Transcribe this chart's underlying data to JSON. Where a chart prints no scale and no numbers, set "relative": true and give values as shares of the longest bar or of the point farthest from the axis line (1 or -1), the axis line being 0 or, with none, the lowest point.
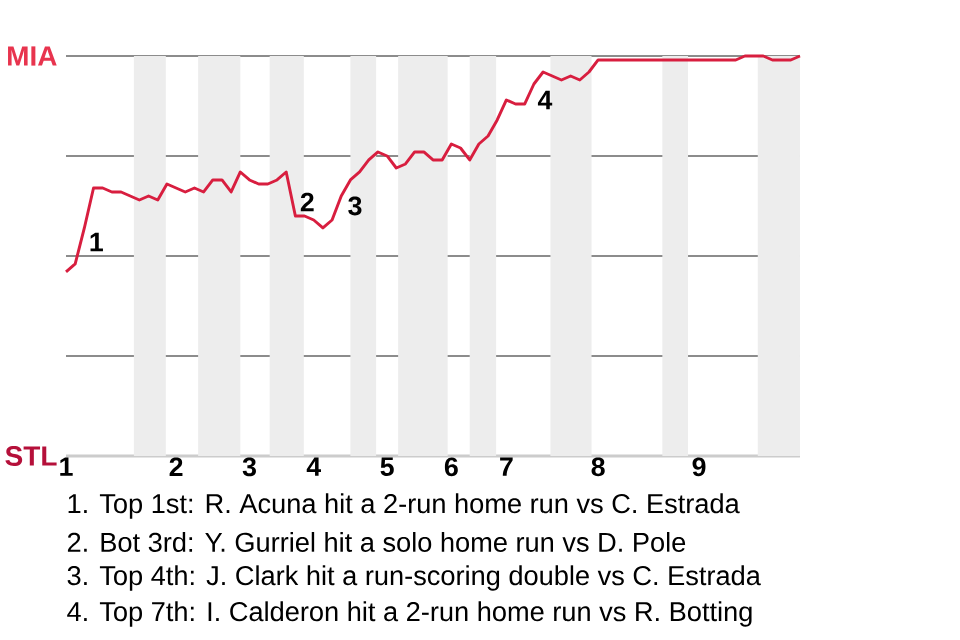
{
  "chart_data": {
    "type": "line",
    "color": "#d81e3f",
    "relative": true,
    "grid": "y",
    "categories": [
      "1",
      null,
      null,
      null,
      null,
      null,
      null,
      null,
      null,
      null,
      null,
      null,
      "2",
      null,
      null,
      null,
      null,
      null,
      null,
      null,
      "3",
      null,
      null,
      null,
      null,
      null,
      null,
      "4",
      null,
      null,
      null,
      null,
      null,
      null,
      null,
      "5",
      null,
      null,
      null,
      null,
      null,
      null,
      "6",
      null,
      null,
      null,
      null,
      null,
      "7",
      null,
      null,
      null,
      null,
      null,
      null,
      null,
      null,
      null,
      "8",
      null,
      null,
      null,
      null,
      null,
      null,
      null,
      null,
      null,
      null,
      "9",
      null,
      null,
      null,
      null,
      null,
      null,
      null,
      null,
      null,
      null,
      null
    ],
    "values": [
      0.46,
      0.48,
      0.57,
      0.67,
      0.67,
      0.66,
      0.66,
      0.65,
      0.64,
      0.65,
      0.64,
      0.68,
      0.67,
      0.66,
      0.67,
      0.66,
      0.69,
      0.69,
      0.66,
      0.71,
      0.69,
      0.68,
      0.68,
      0.69,
      0.71,
      0.6,
      0.6,
      0.59,
      0.57,
      0.59,
      0.65,
      0.69,
      0.71,
      0.74,
      0.76,
      0.75,
      0.72,
      0.73,
      0.76,
      0.76,
      0.74,
      0.74,
      0.78,
      0.77,
      0.74,
      0.78,
      0.8,
      0.84,
      0.89,
      0.88,
      0.88,
      0.93,
      0.96,
      0.95,
      0.94,
      0.95,
      0.94,
      0.96,
      0.99,
      0.99,
      0.99,
      0.99,
      0.99,
      0.99,
      0.99,
      0.99,
      0.99,
      0.99,
      0.99,
      0.99,
      0.99,
      0.99,
      0.99,
      0.99,
      1,
      1,
      1,
      0.99,
      0.99,
      0.99,
      1
    ],
    "annotations": [
      "MIA",
      "STL",
      "1",
      "2",
      "3",
      "4",
      "1. Top 1st: R. Acuna hit a 2-run home run vs C. Estrada",
      "2. Bot 3rd: Y. Gurriel hit a solo home run vs D. Pole",
      "3. Top 4th: J. Clark hit a run-scoring double vs C. Estrada",
      "4. Top 7th: I. Calderon hit a 2-run home run vs R. Botting"
    ]
  }
}
